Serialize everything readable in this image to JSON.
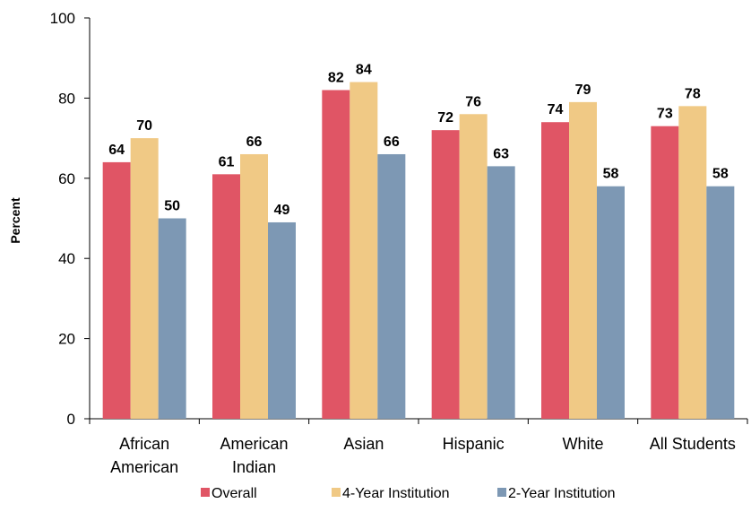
{
  "chart_data": {
    "type": "bar",
    "title": "",
    "xlabel": "",
    "ylabel": "Percent",
    "ylim": [
      0,
      100
    ],
    "yticks": [
      0,
      20,
      40,
      60,
      80,
      100
    ],
    "categories": [
      [
        "African",
        "American"
      ],
      [
        "American",
        "Indian"
      ],
      [
        "Asian"
      ],
      [
        "Hispanic"
      ],
      [
        "White"
      ],
      [
        "All Students"
      ]
    ],
    "series": [
      {
        "name": "Overall",
        "color": "#e05565",
        "values": [
          64,
          61,
          82,
          72,
          74,
          73
        ]
      },
      {
        "name": "4-Year Institution",
        "color": "#f0c985",
        "values": [
          70,
          66,
          84,
          76,
          79,
          78
        ]
      },
      {
        "name": "2-Year Institution",
        "color": "#7d98b4",
        "values": [
          50,
          49,
          66,
          63,
          58,
          58
        ]
      }
    ],
    "grid": false,
    "legend_position": "bottom"
  }
}
